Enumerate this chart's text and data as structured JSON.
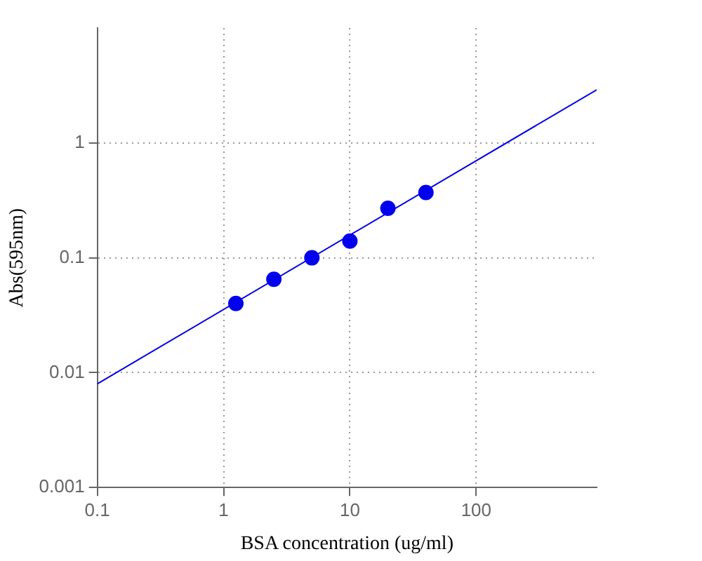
{
  "chart_data": {
    "type": "scatter",
    "xlabel": "BSA concentration (ug/ml)",
    "ylabel": "Abs(595nm)",
    "log": "xy",
    "grid": true,
    "legend": false,
    "marker": "circle",
    "xlim": [
      0.1,
      900
    ],
    "xticks": [
      0.1,
      1,
      10,
      100
    ],
    "ylim": [
      0.001,
      10
    ],
    "yticks": [
      0.001,
      0.01,
      0.1,
      1
    ],
    "series": [
      {
        "type": "scatter",
        "color": "#0000ee",
        "x": [
          1.25,
          2.5,
          5,
          10,
          20,
          40
        ],
        "values": [
          0.04,
          0.065,
          0.1,
          0.14,
          0.27,
          0.37
        ]
      },
      {
        "type": "line",
        "color": "#0000ee",
        "x": [
          0.1,
          900
        ],
        "values": [
          0.008,
          2.9
        ],
        "marker": "none",
        "line_style": "solid"
      }
    ]
  }
}
